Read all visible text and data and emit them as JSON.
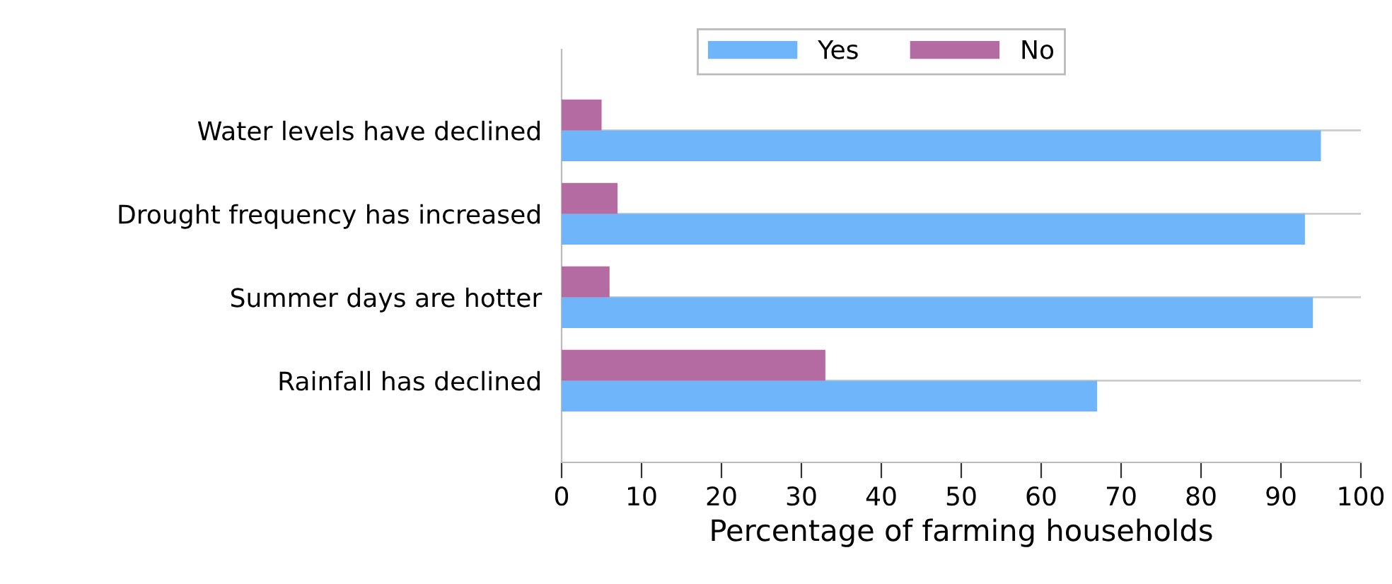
{
  "chart_data": {
    "type": "bar",
    "orientation": "horizontal",
    "xlabel": "Percentage of farming households",
    "categories": [
      "Water levels have declined",
      "Drought frequency has increased",
      "Summer days are hotter",
      "Rainfall has declined"
    ],
    "series": [
      {
        "name": "Yes",
        "color": "#6eb5fa",
        "values": [
          95,
          93,
          94,
          67
        ]
      },
      {
        "name": "No",
        "color": "#b36ba1",
        "values": [
          5,
          7,
          6,
          33
        ]
      }
    ],
    "xlim": [
      0,
      100
    ],
    "xticks": [
      0,
      10,
      20,
      30,
      40,
      50,
      60,
      70,
      80,
      90,
      100
    ],
    "grid": "y",
    "legend": "top"
  }
}
